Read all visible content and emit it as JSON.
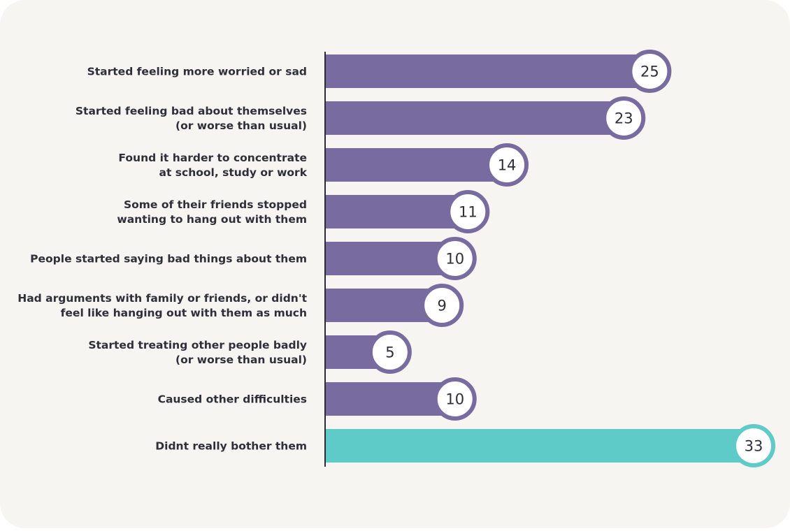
{
  "chart_data": {
    "type": "bar",
    "orientation": "horizontal",
    "categories": [
      [
        "Started feeling more worried or sad"
      ],
      [
        "Started feeling bad about themselves",
        "(or worse than usual)"
      ],
      [
        "Found it harder to concentrate",
        "at school, study or work"
      ],
      [
        "Some of their friends stopped",
        "wanting to hang out with them"
      ],
      [
        "People started saying bad things about them"
      ],
      [
        "Had arguments with family or friends, or didn't",
        "feel like hanging out with them as much"
      ],
      [
        "Started treating other people badly",
        "(or worse than usual)"
      ],
      [
        "Caused other difficulties"
      ],
      [
        "Didnt really bother them"
      ]
    ],
    "values": [
      25,
      23,
      14,
      11,
      10,
      9,
      5,
      10,
      33
    ],
    "xlim": [
      0,
      33
    ],
    "grid": false,
    "colors": {
      "default": "#786b9f",
      "highlight": "#5ecbc8",
      "badge_fill": "#ffffff",
      "axis": "#2b2b35",
      "background": "#f6f5f1"
    },
    "highlight_index": 8
  }
}
